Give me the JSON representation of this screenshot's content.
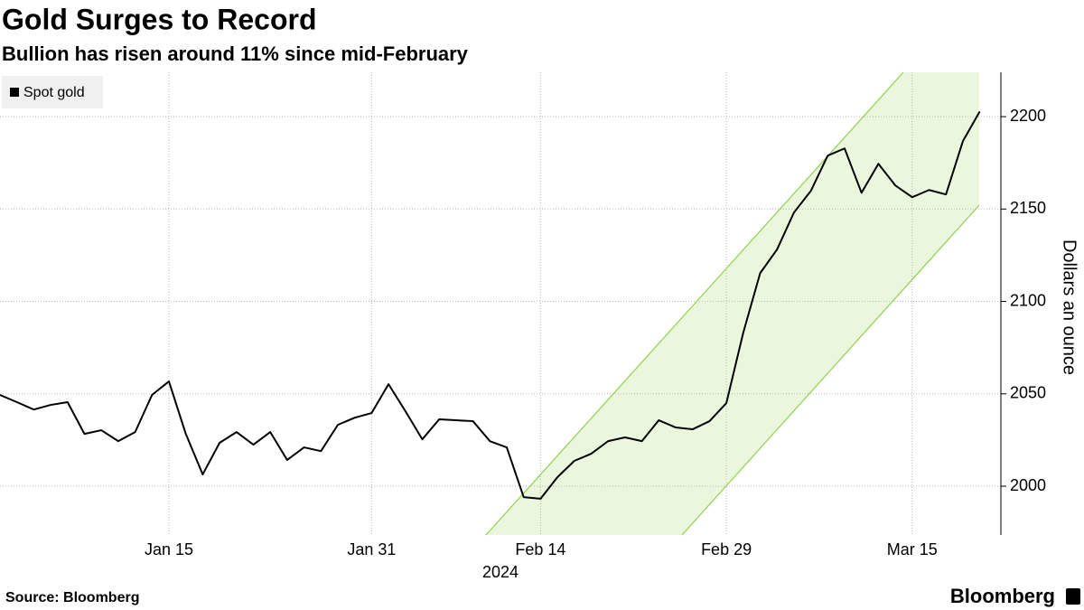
{
  "chart_data": {
    "type": "line",
    "title": "Gold Surges to Record",
    "subtitle": "Bullion has risen around 11% since mid-February",
    "source": "Source: Bloomberg",
    "brand": "Bloomberg",
    "ylabel": "Dollars an ounce",
    "x_year_label": "2024",
    "x": [
      "2024-01-01",
      "2024-01-02",
      "2024-01-03",
      "2024-01-04",
      "2024-01-05",
      "2024-01-08",
      "2024-01-09",
      "2024-01-10",
      "2024-01-11",
      "2024-01-12",
      "2024-01-15",
      "2024-01-16",
      "2024-01-17",
      "2024-01-18",
      "2024-01-19",
      "2024-01-22",
      "2024-01-23",
      "2024-01-24",
      "2024-01-25",
      "2024-01-26",
      "2024-01-29",
      "2024-01-30",
      "2024-01-31",
      "2024-02-01",
      "2024-02-02",
      "2024-02-05",
      "2024-02-06",
      "2024-02-07",
      "2024-02-08",
      "2024-02-09",
      "2024-02-12",
      "2024-02-13",
      "2024-02-14",
      "2024-02-15",
      "2024-02-16",
      "2024-02-19",
      "2024-02-20",
      "2024-02-21",
      "2024-02-22",
      "2024-02-23",
      "2024-02-26",
      "2024-02-27",
      "2024-02-28",
      "2024-02-29",
      "2024-03-01",
      "2024-03-04",
      "2024-03-05",
      "2024-03-06",
      "2024-03-07",
      "2024-03-08",
      "2024-03-11",
      "2024-03-12",
      "2024-03-13",
      "2024-03-14",
      "2024-03-15",
      "2024-03-18",
      "2024-03-19",
      "2024-03-20",
      "2024-03-21"
    ],
    "series": [
      {
        "name": "Spot gold",
        "color": "#000000",
        "values": [
          2049.4,
          2045.5,
          2041.5,
          2044,
          2045.5,
          2028.3,
          2030.3,
          2024.4,
          2029.3,
          2049.4,
          2056.7,
          2028.3,
          2006.4,
          2023.5,
          2029.3,
          2022.5,
          2029.3,
          2014.2,
          2021,
          2019,
          2033.2,
          2037.1,
          2039.6,
          2055.2,
          2040.6,
          2025.4,
          2036.2,
          2035.7,
          2035.2,
          2024.4,
          2021,
          1994.1,
          1993.2,
          2004.9,
          2013.7,
          2017.6,
          2024.4,
          2026.4,
          2024.4,
          2035.7,
          2031.8,
          2030.8,
          2035.2,
          2045,
          2083.1,
          2115.3,
          2128.1,
          2148.1,
          2159.8,
          2178.9,
          2182.8,
          2158.8,
          2174.5,
          2162.8,
          2156.4,
          2160.3,
          2157.9,
          2186.7,
          2202.8
        ]
      }
    ],
    "xticks": [
      {
        "value": "2024-01-15",
        "label": "Jan 15"
      },
      {
        "value": "2024-01-31",
        "label": "Jan 31"
      },
      {
        "value": "2024-02-14",
        "label": "Feb 14"
      },
      {
        "value": "2024-02-29",
        "label": "Feb 29"
      },
      {
        "value": "2024-03-15",
        "label": "Mar 15"
      }
    ],
    "ylim": [
      1973.6,
      2224
    ],
    "yticks": [
      2000,
      2050,
      2100,
      2150,
      2200
    ],
    "grid": true
  }
}
